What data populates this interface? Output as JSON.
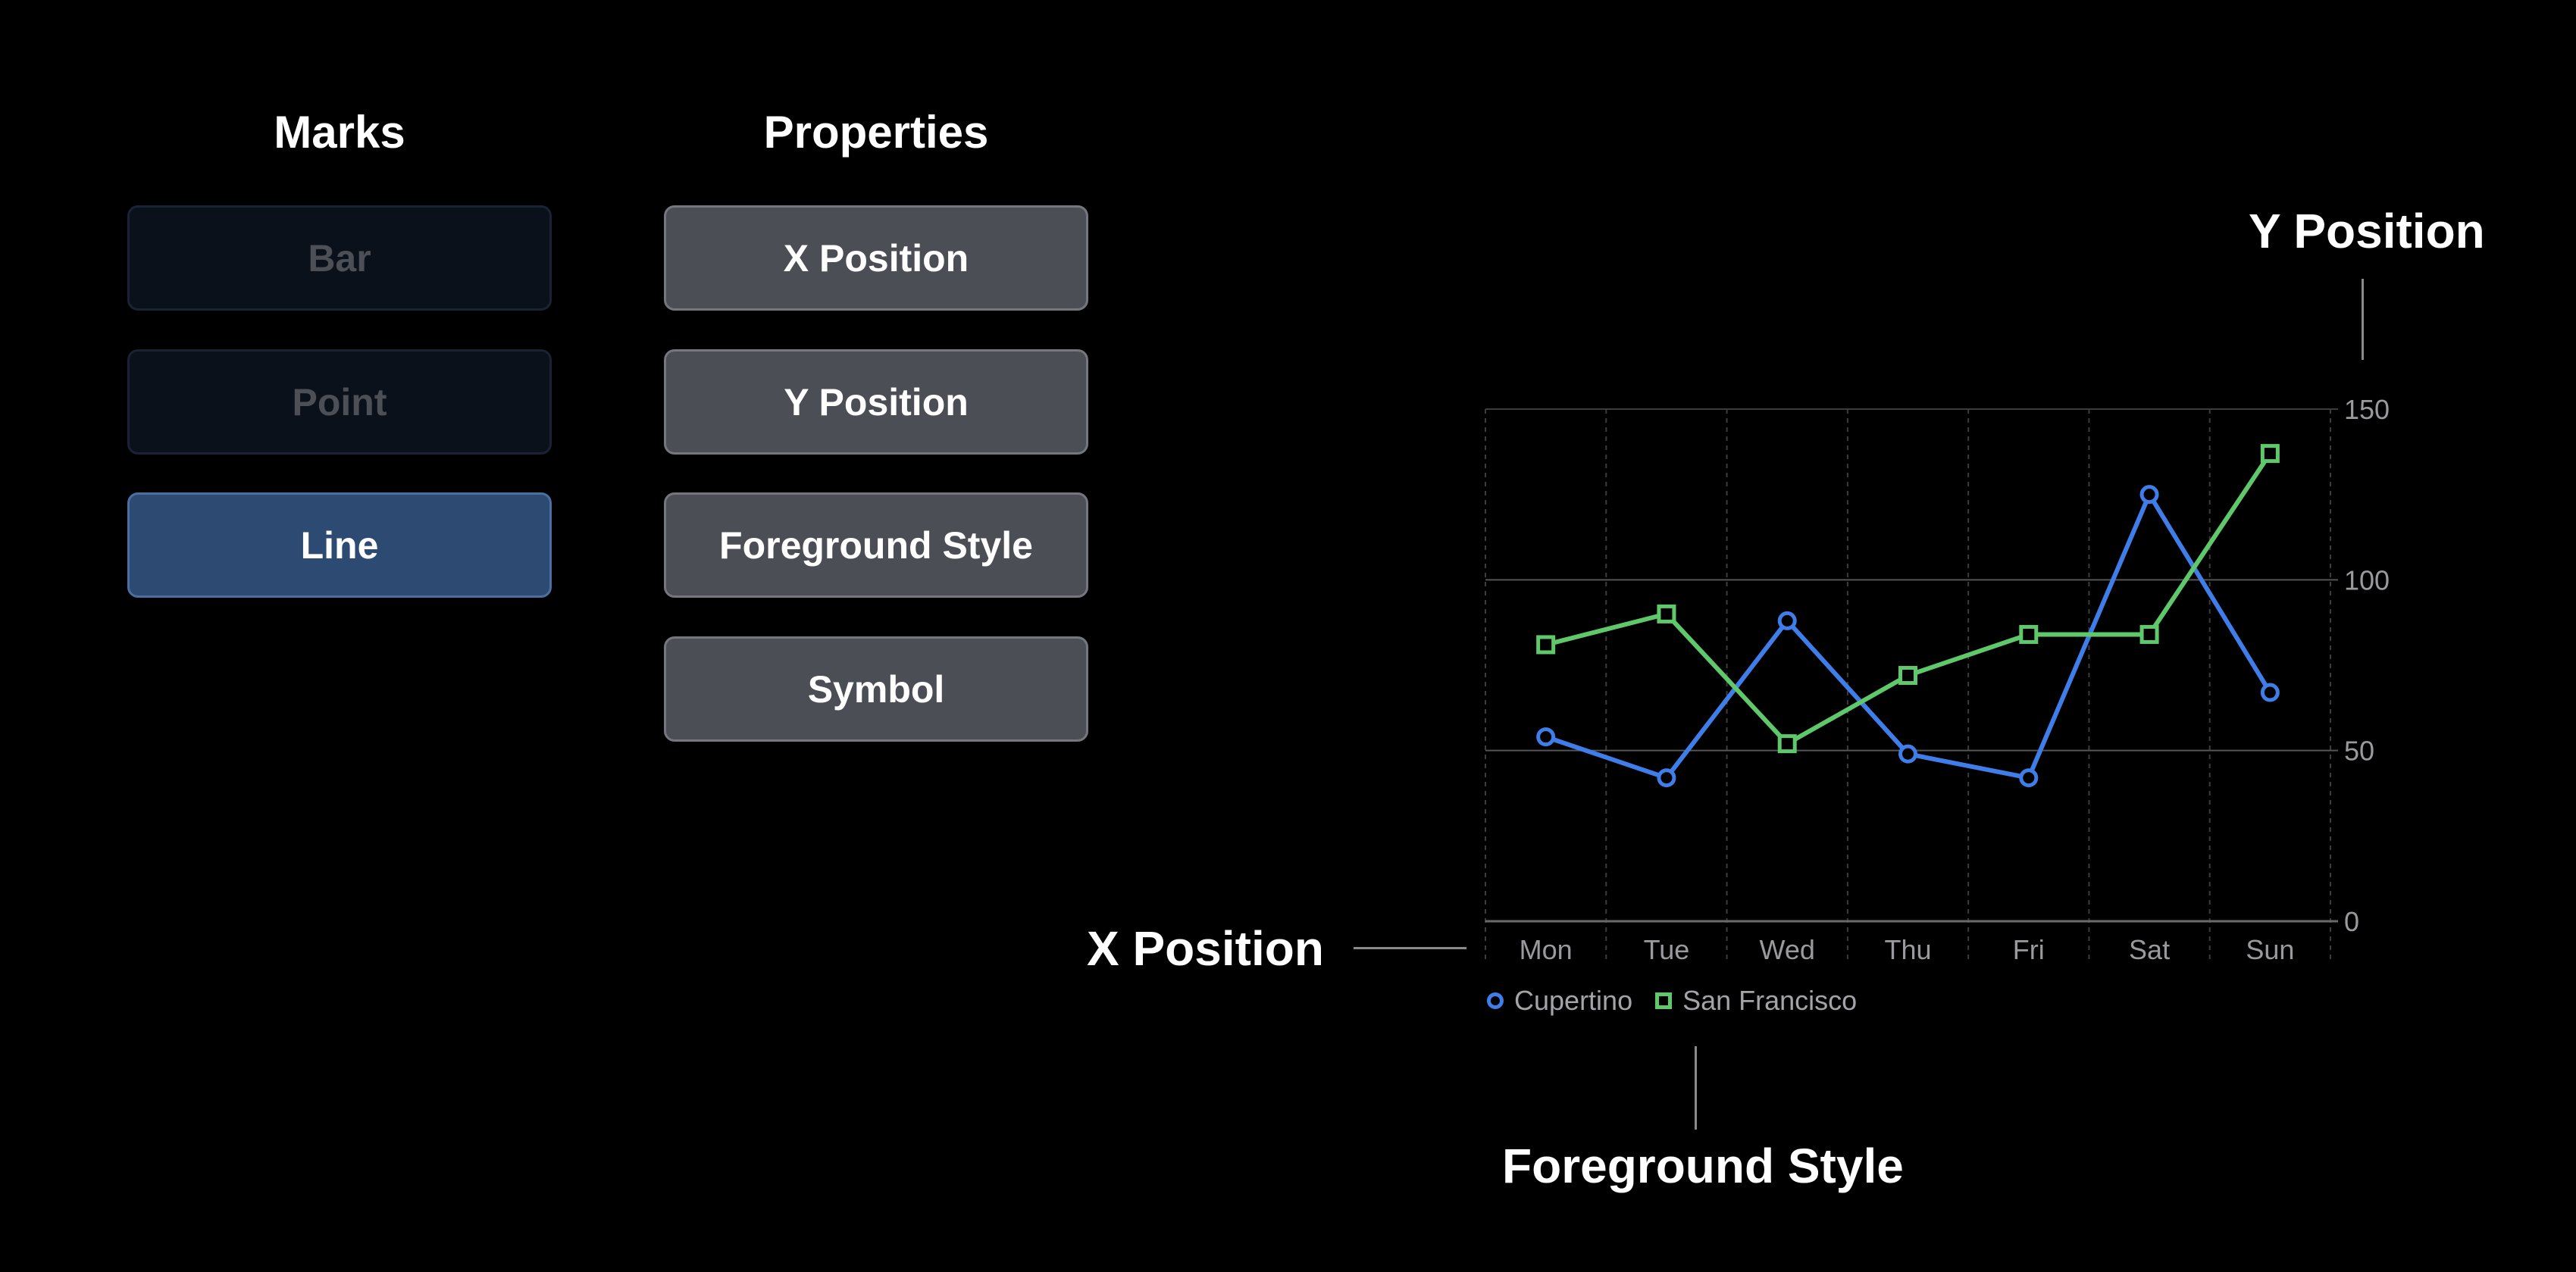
{
  "marks": {
    "heading": "Marks",
    "items": [
      {
        "label": "Bar",
        "state": "dim"
      },
      {
        "label": "Point",
        "state": "dim"
      },
      {
        "label": "Line",
        "state": "active"
      }
    ]
  },
  "properties": {
    "heading": "Properties",
    "items": [
      "X Position",
      "Y Position",
      "Foreground Style",
      "Symbol"
    ]
  },
  "callouts": {
    "y_position": "Y Position",
    "x_position": "X Position",
    "foreground_style": "Foreground Style"
  },
  "colors": {
    "cupertino": "#3f7de8",
    "san_francisco": "#5fc86a",
    "active_mark": "#2c4a72"
  },
  "chart_data": {
    "type": "line",
    "categories": [
      "Mon",
      "Tue",
      "Wed",
      "Thu",
      "Fri",
      "Sat",
      "Sun"
    ],
    "series": [
      {
        "name": "Cupertino",
        "symbol": "circle",
        "values": [
          54,
          42,
          88,
          49,
          42,
          125,
          67
        ]
      },
      {
        "name": "San Francisco",
        "symbol": "square",
        "values": [
          81,
          90,
          52,
          72,
          84,
          84,
          137
        ]
      }
    ],
    "yticks": [
      0,
      50,
      100,
      150
    ],
    "ylim": [
      0,
      150
    ],
    "grid": true,
    "legend": "bottom-left"
  }
}
